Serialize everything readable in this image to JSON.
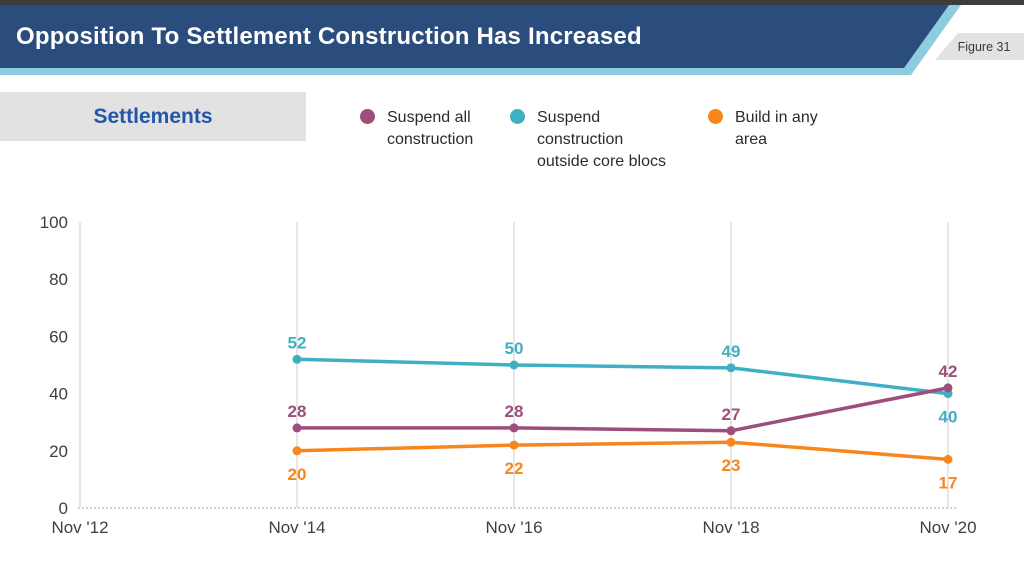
{
  "colors": {
    "top_strip": "#3d3d3d",
    "banner": "#2a4d7d",
    "accent": "#8ecddf",
    "box_gray": "#e2e2e2",
    "section_text": "#2456a8",
    "figure_text": "#3a3a3a",
    "axis_text": "#3f3f3f",
    "gridline": "#d9d9d9",
    "axis_line": "#c4c4c4"
  },
  "header": {
    "title": "Opposition To Settlement Construction Has Increased",
    "figure_label": "Figure 31"
  },
  "section": {
    "label": "Settlements"
  },
  "legend": [
    {
      "name": "suspend-all-construction",
      "color": "#9c4e7c",
      "lines": [
        "Suspend all",
        "construction"
      ]
    },
    {
      "name": "suspend-outside-core-blocs",
      "color": "#3fb0c3",
      "lines": [
        "Suspend",
        "construction",
        "outside core blocs"
      ]
    },
    {
      "name": "build-in-any-area",
      "color": "#f8861d",
      "lines": [
        "Build in any",
        "area"
      ]
    }
  ],
  "chart_data": {
    "type": "line",
    "title": "Settlements",
    "categories": [
      "Nov '12",
      "Nov '14",
      "Nov '16",
      "Nov '18",
      "Nov '20"
    ],
    "series": [
      {
        "name": "Suspend all construction",
        "color": "#9c4e7c",
        "values": [
          null,
          28,
          28,
          27,
          42
        ],
        "label_side": [
          "above",
          "above",
          "above",
          "above",
          "above"
        ]
      },
      {
        "name": "Suspend construction outside core blocs",
        "color": "#3fb0c3",
        "values": [
          null,
          52,
          50,
          49,
          40
        ],
        "label_side": [
          "above",
          "above",
          "above",
          "above",
          "below"
        ]
      },
      {
        "name": "Build in any area",
        "color": "#f8861d",
        "values": [
          null,
          20,
          22,
          23,
          17
        ],
        "label_side": [
          "below",
          "below",
          "below",
          "below",
          "below"
        ]
      }
    ],
    "ylim": [
      0,
      100
    ],
    "yticks": [
      0,
      20,
      40,
      60,
      80,
      100
    ],
    "grid": "vertical-only",
    "legend_position": "top",
    "data_labels": true
  }
}
